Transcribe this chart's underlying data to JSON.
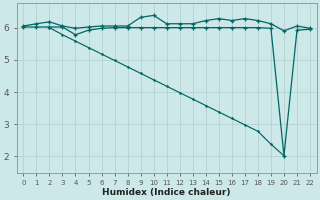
{
  "title": "",
  "xlabel": "Humidex (Indice chaleur)",
  "ylabel": "",
  "background_color": "#cce8e8",
  "grid_color": "#b8d4d4",
  "line_color": "#006666",
  "xlim": [
    -0.5,
    22.5
  ],
  "ylim": [
    1.5,
    6.75
  ],
  "yticks": [
    2,
    3,
    4,
    5,
    6
  ],
  "xticks": [
    0,
    1,
    2,
    3,
    4,
    5,
    6,
    7,
    8,
    9,
    10,
    11,
    12,
    13,
    14,
    15,
    16,
    17,
    18,
    19,
    20,
    21,
    22
  ],
  "line_top_x": [
    0,
    1,
    2,
    3,
    4,
    5,
    6,
    7,
    8,
    9,
    10,
    11,
    12,
    13,
    14,
    15,
    16,
    17,
    18,
    19,
    20,
    21,
    22
  ],
  "line_top_y": [
    6.05,
    6.12,
    6.18,
    6.05,
    5.98,
    6.02,
    6.05,
    6.05,
    6.05,
    6.32,
    6.38,
    6.12,
    6.12,
    6.12,
    6.22,
    6.28,
    6.22,
    6.28,
    6.22,
    6.12,
    5.9,
    6.05,
    5.98
  ],
  "line_flat_x": [
    0,
    1,
    2,
    3,
    4,
    5,
    6,
    7,
    8,
    9,
    10,
    11,
    12,
    13,
    14,
    15,
    16,
    17,
    18,
    19,
    20,
    21,
    22
  ],
  "line_flat_y": [
    6.02,
    6.02,
    6.02,
    6.02,
    5.78,
    5.92,
    5.98,
    6.0,
    6.0,
    6.0,
    6.0,
    6.0,
    6.0,
    6.0,
    6.0,
    6.0,
    6.0,
    6.0,
    6.0,
    5.98,
    2.02,
    5.92,
    5.95
  ],
  "line_diag_x": [
    2,
    3,
    4,
    5,
    6,
    7,
    8,
    9,
    10,
    11,
    12,
    13,
    14,
    15,
    16,
    17,
    18,
    19,
    20
  ],
  "line_diag_y": [
    6.0,
    5.78,
    5.58,
    5.38,
    5.18,
    4.98,
    4.78,
    4.58,
    4.38,
    4.18,
    3.98,
    3.78,
    3.58,
    3.38,
    3.18,
    2.98,
    2.78,
    2.38,
    2.02
  ]
}
